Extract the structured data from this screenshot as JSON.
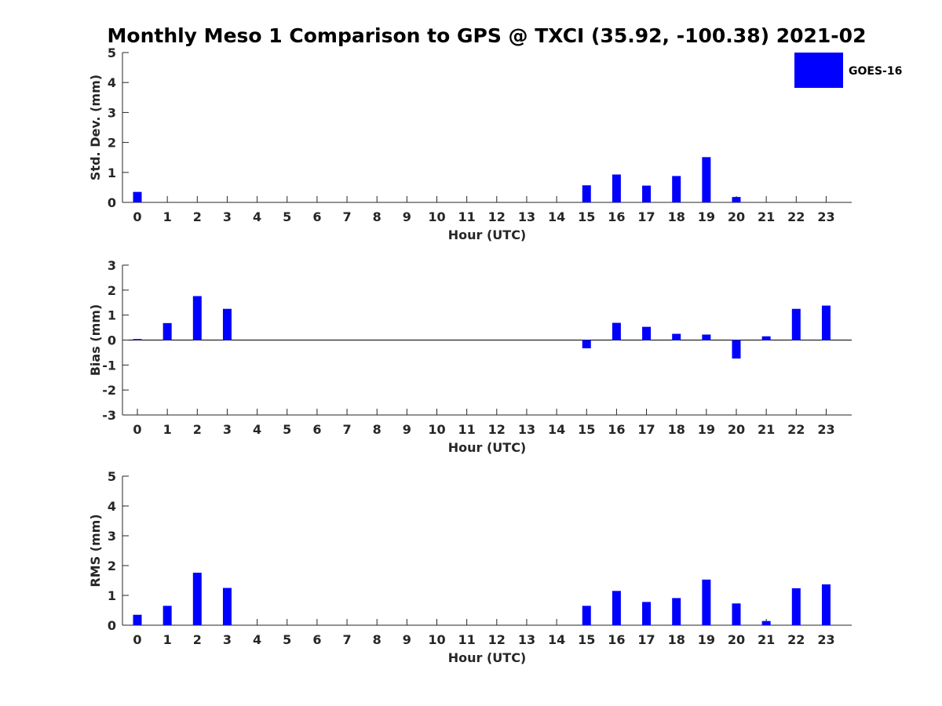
{
  "title": "Monthly Meso 1 Comparison to GPS @ TXCI (35.92, -100.38) 2021-02",
  "legend": {
    "label": "GOES-16",
    "color": "#0000ff",
    "placement": "top-right"
  },
  "chart_data": [
    {
      "type": "bar",
      "ylabel": "Std. Dev. (mm)",
      "xlabel": "Hour (UTC)",
      "ylim": [
        0,
        5
      ],
      "yticks": [
        0,
        1,
        2,
        3,
        4,
        5
      ],
      "categories": [
        "0",
        "1",
        "2",
        "3",
        "4",
        "5",
        "6",
        "7",
        "8",
        "9",
        "10",
        "11",
        "12",
        "13",
        "14",
        "15",
        "16",
        "17",
        "18",
        "19",
        "20",
        "21",
        "22",
        "23"
      ],
      "series": [
        {
          "name": "GOES-16",
          "color": "#0000ff",
          "values": [
            0.35,
            0,
            0,
            0,
            0,
            0,
            0,
            0,
            0,
            0,
            0,
            0,
            0,
            0,
            0,
            0.57,
            0.93,
            0.56,
            0.88,
            1.51,
            0.18,
            0,
            0,
            0
          ]
        }
      ]
    },
    {
      "type": "bar",
      "ylabel": "Bias (mm)",
      "xlabel": "Hour (UTC)",
      "ylim": [
        -3,
        3
      ],
      "yticks": [
        -3,
        -2,
        -1,
        0,
        1,
        2,
        3
      ],
      "categories": [
        "0",
        "1",
        "2",
        "3",
        "4",
        "5",
        "6",
        "7",
        "8",
        "9",
        "10",
        "11",
        "12",
        "13",
        "14",
        "15",
        "16",
        "17",
        "18",
        "19",
        "20",
        "21",
        "22",
        "23"
      ],
      "series": [
        {
          "name": "GOES-16",
          "color": "#0000ff",
          "values": [
            0.04,
            0.68,
            1.76,
            1.25,
            0,
            0,
            0,
            0,
            0,
            0,
            0,
            0,
            0,
            0,
            0,
            -0.33,
            0.69,
            0.53,
            0.25,
            0.22,
            -0.74,
            0.15,
            1.25,
            1.38
          ]
        }
      ]
    },
    {
      "type": "bar",
      "ylabel": "RMS (mm)",
      "xlabel": "Hour (UTC)",
      "ylim": [
        0,
        5
      ],
      "yticks": [
        0,
        1,
        2,
        3,
        4,
        5
      ],
      "categories": [
        "0",
        "1",
        "2",
        "3",
        "4",
        "5",
        "6",
        "7",
        "8",
        "9",
        "10",
        "11",
        "12",
        "13",
        "14",
        "15",
        "16",
        "17",
        "18",
        "19",
        "20",
        "21",
        "22",
        "23"
      ],
      "series": [
        {
          "name": "GOES-16",
          "color": "#0000ff",
          "values": [
            0.35,
            0.65,
            1.76,
            1.25,
            0,
            0,
            0,
            0,
            0,
            0,
            0,
            0,
            0,
            0,
            0,
            0.65,
            1.15,
            0.78,
            0.91,
            1.53,
            0.73,
            0.14,
            1.24,
            1.37
          ]
        }
      ]
    }
  ]
}
